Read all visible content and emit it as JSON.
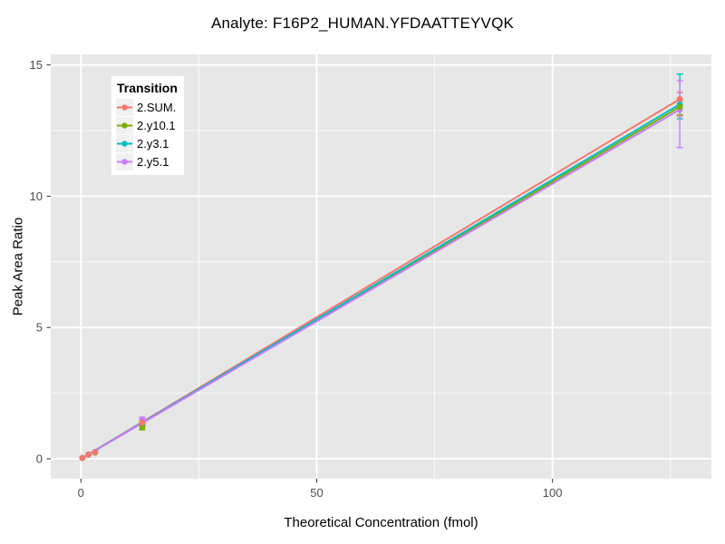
{
  "chart_data": {
    "type": "scatter",
    "title": "Analyte: F16P2_HUMAN.YFDAATTEYVQK",
    "xlabel": "Theoretical Concentration (fmol)",
    "ylabel": "Peak Area Ratio",
    "xlim": [
      -6.4,
      133.7
    ],
    "ylim": [
      -0.76,
      15.4
    ],
    "xticks": [
      0,
      50,
      100
    ],
    "yticks": [
      0,
      5,
      10,
      15
    ],
    "xminor": [
      25,
      75,
      125
    ],
    "yminor": [
      2.5,
      7.5,
      12.5
    ],
    "grid": "major+minor white on gray panel",
    "legend_title": "Transition",
    "legend_position": "inset top-left",
    "x": [
      0.3,
      1.6,
      3,
      13,
      127
    ],
    "series": [
      {
        "name": "2.SUM.",
        "color": "#F8766D",
        "values": [
          0.03,
          0.16,
          0.25,
          1.38,
          13.7
        ],
        "err_lo": [
          0.03,
          0.16,
          0.25,
          1.28,
          13.05
        ],
        "err_hi": [
          0.03,
          0.16,
          0.25,
          1.48,
          13.95
        ]
      },
      {
        "name": "2.y10.1",
        "color": "#7CAE00",
        "values": [
          0.03,
          0.15,
          0.24,
          1.2,
          13.4
        ],
        "err_lo": [
          0.03,
          0.15,
          0.24,
          1.1,
          13.1
        ],
        "err_hi": [
          0.03,
          0.15,
          0.24,
          1.3,
          13.65
        ]
      },
      {
        "name": "2.y3.1",
        "color": "#00BFC4",
        "values": [
          0.03,
          0.16,
          0.25,
          1.35,
          13.5
        ],
        "err_lo": [
          0.03,
          0.16,
          0.25,
          1.35,
          12.95
        ],
        "err_hi": [
          0.03,
          0.16,
          0.25,
          1.35,
          14.65
        ]
      },
      {
        "name": "2.y5.1",
        "color": "#C77CFF",
        "values": [
          0.03,
          0.16,
          0.26,
          1.5,
          13.3
        ],
        "err_lo": [
          0.03,
          0.16,
          0.26,
          1.42,
          11.85
        ],
        "err_hi": [
          0.03,
          0.16,
          0.26,
          1.58,
          14.4
        ]
      }
    ],
    "colors": {
      "panel_bg": "#E7E7E7",
      "grid": "#FFFFFF",
      "tick_mark": "#333333",
      "tick_label": "#4D4D4D",
      "text": "#000000",
      "legend_key_bg": "#F1F1F1"
    }
  }
}
